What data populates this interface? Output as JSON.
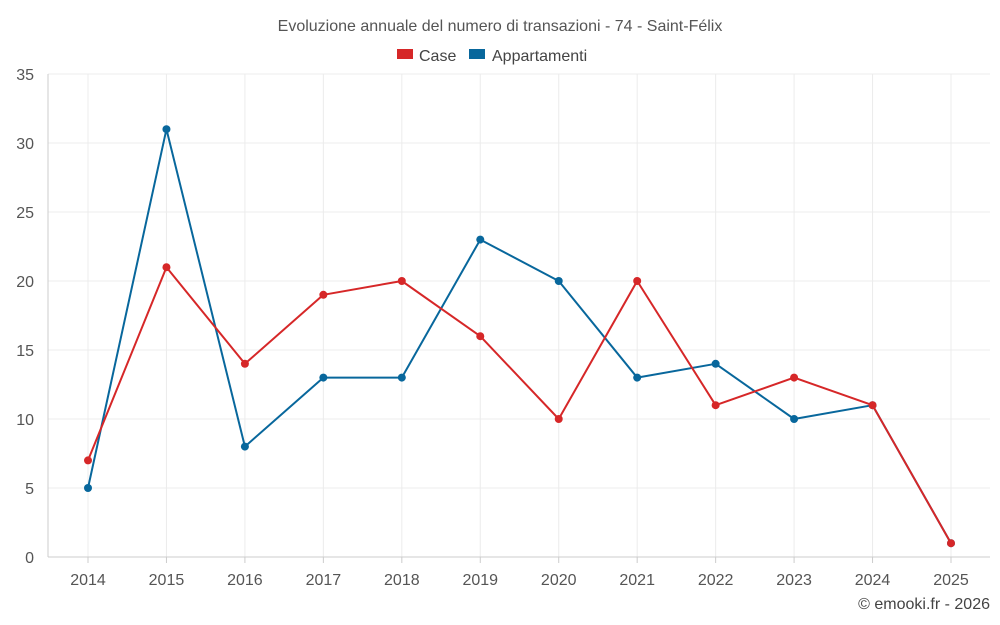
{
  "chart_data": {
    "type": "line",
    "title": "Evoluzione annuale del numero di transazioni - 74 - Saint-Félix",
    "xlabel": "",
    "ylabel": "",
    "categories": [
      "2014",
      "2015",
      "2016",
      "2017",
      "2018",
      "2019",
      "2020",
      "2021",
      "2022",
      "2023",
      "2024",
      "2025"
    ],
    "ylim": [
      0,
      35
    ],
    "yticks": [
      0,
      5,
      10,
      15,
      20,
      25,
      30,
      35
    ],
    "grid": true,
    "legend_position": "top-center",
    "series": [
      {
        "name": "Case",
        "color": "#d62728",
        "values": [
          7,
          21,
          14,
          19,
          20,
          16,
          10,
          20,
          11,
          13,
          11,
          1
        ]
      },
      {
        "name": "Appartamenti",
        "color": "#08679c",
        "values": [
          5,
          31,
          8,
          13,
          13,
          23,
          20,
          13,
          14,
          10,
          11,
          1
        ]
      }
    ]
  },
  "credit": "© emooki.fr - 2026"
}
